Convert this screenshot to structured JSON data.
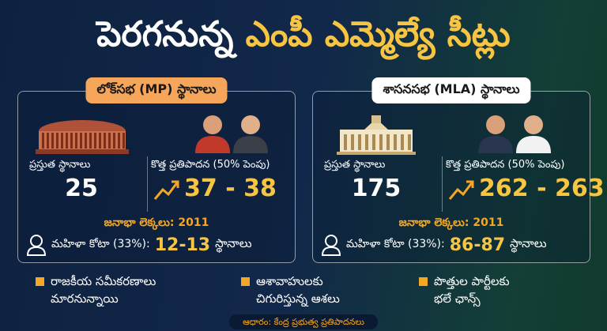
{
  "title": {
    "part1": "పెరగనున్న",
    "part2": "ఎంపీ ఎమ్మెల్యే సీట్లు"
  },
  "panels": [
    {
      "header": "లోక్‌సభ (MP) స్థానాలు",
      "current_label": "ప్రస్తుత స్థానాలు",
      "current_value": "25",
      "proposal_label": "కొత్త ప్రతిపాదన (50% పెంపు)",
      "proposal_value": "37 - 38",
      "census": "జనాభా లెక్కలు: 2011",
      "quota_label": "మహిళా కోటా (33%):",
      "quota_value": "12-13",
      "quota_unit": "స్థానాలు"
    },
    {
      "header": "శాసనసభ (MLA) స్థానాలు",
      "current_label": "ప్రస్తుత స్థానాలు",
      "current_value": "175",
      "proposal_label": "కొత్త ప్రతిపాదన (50% పెంపు)",
      "proposal_value": "262 - 263",
      "census": "జనాభా లెక్కలు: 2011",
      "quota_label": "మహిళా కోటా (33%):",
      "quota_value": "86-87",
      "quota_unit": "స్థానాలు"
    }
  ],
  "bullets": [
    {
      "lines": [
        "రాజకీయ సమీకరణాలు",
        "మారనున్నాయి"
      ]
    },
    {
      "lines": [
        "ఆశావాహులకు",
        "చిగురిస్తున్న ఆశలు"
      ]
    },
    {
      "lines": [
        "పొత్తుల పార్టీలకు",
        "భలే ఛాన్స్"
      ]
    }
  ],
  "footer": "ఆధారం: కేంద్ర ప్రభుత్వ ప్రతిపాదనలు"
}
